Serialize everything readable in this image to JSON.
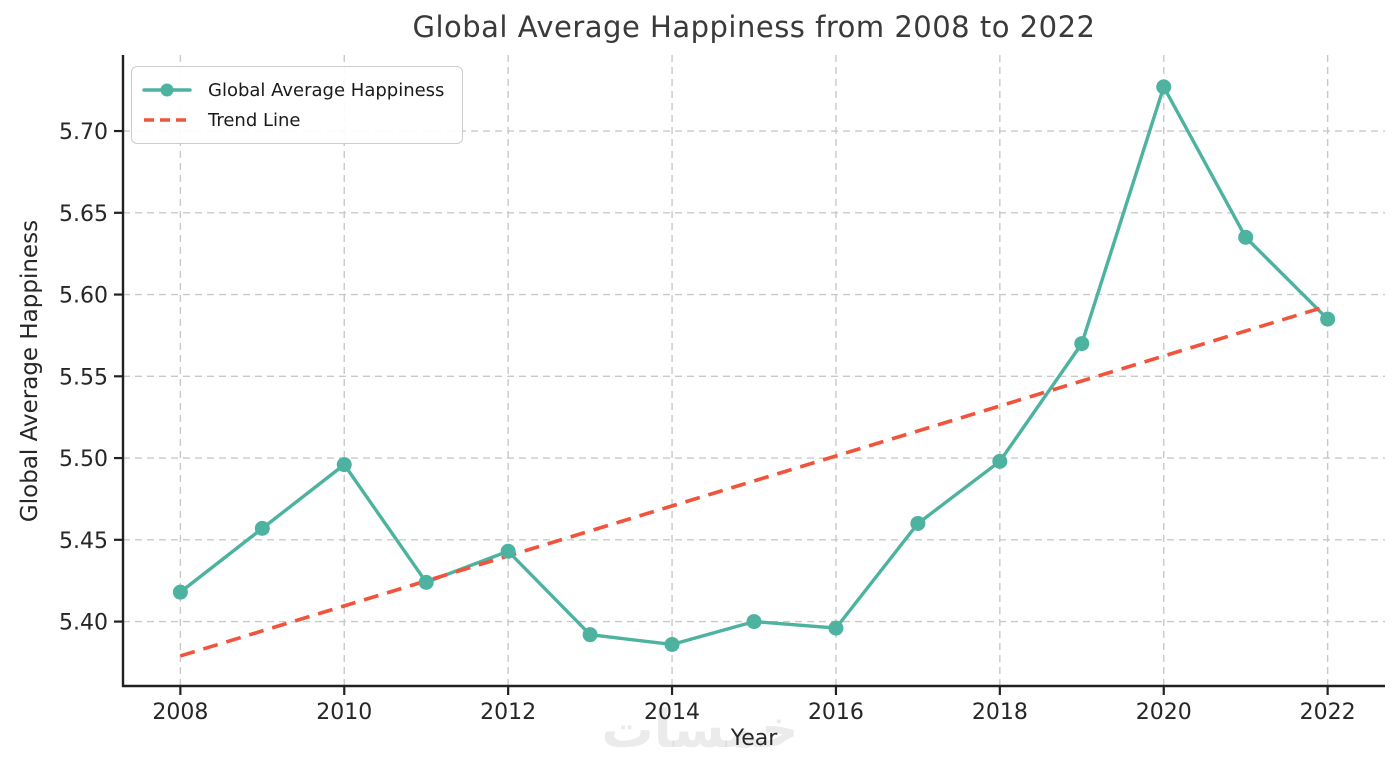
{
  "title": "Global Average Happiness from 2008 to 2022",
  "watermark_text": "خمسات",
  "chart_data": {
    "type": "line",
    "title": "Global Average Happiness from 2008 to 2022",
    "xlabel": "Year",
    "ylabel": "Global Average Happiness",
    "x": [
      2008,
      2009,
      2010,
      2011,
      2012,
      2013,
      2014,
      2015,
      2016,
      2017,
      2018,
      2019,
      2020,
      2021,
      2022
    ],
    "series": [
      {
        "name": "Global Average Happiness",
        "type": "line-markers",
        "color": "#4DB2A0",
        "values": [
          5.418,
          5.457,
          5.496,
          5.424,
          5.443,
          5.392,
          5.386,
          5.4,
          5.396,
          5.46,
          5.498,
          5.57,
          5.727,
          5.635,
          5.585
        ]
      },
      {
        "name": "Trend Line",
        "type": "dashed-line",
        "color": "#F1543C",
        "x": [
          2008,
          2022
        ],
        "values": [
          5.379,
          5.593
        ]
      }
    ],
    "xticks": [
      2008,
      2010,
      2012,
      2014,
      2016,
      2018,
      2020,
      2022
    ],
    "yticks": [
      5.4,
      5.45,
      5.5,
      5.55,
      5.6,
      5.65,
      5.7
    ],
    "xlim": [
      2007.3,
      2022.7
    ],
    "ylim": [
      5.3606,
      5.7465
    ],
    "grid": true,
    "grid_color": "#c9c9c9",
    "axis_color": "#212121",
    "legend_position": "upper-left"
  }
}
